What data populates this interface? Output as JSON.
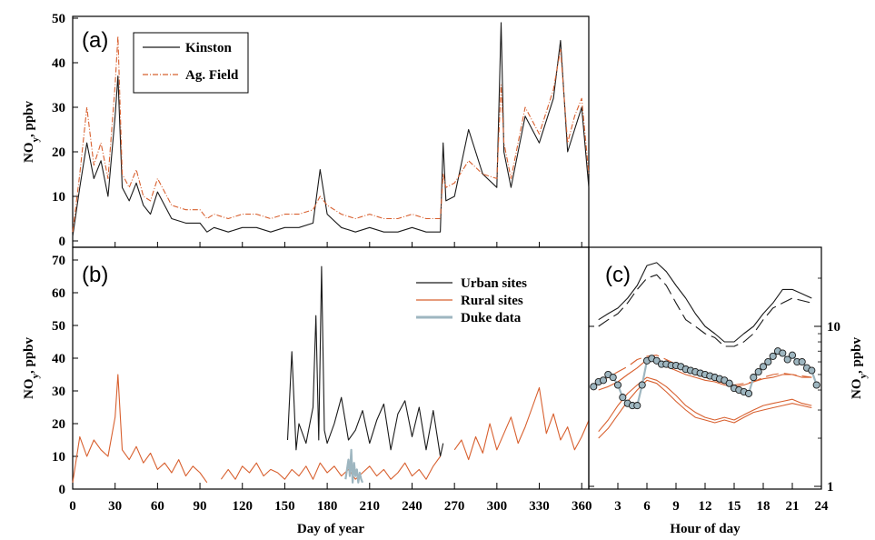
{
  "colors": {
    "urban": "#1a1a1a",
    "rural": "#d8602f",
    "duke": "#9eb6c0",
    "axes": "#000000"
  },
  "chart_data": [
    {
      "panel": "a",
      "type": "line",
      "panel_label": "(a)",
      "title": "",
      "xlabel": "",
      "ylabel_main": "NO",
      "ylabel_sub": "y",
      "ylabel_rest": ", ppbv",
      "xlim": [
        0,
        365
      ],
      "ylim": [
        0,
        50
      ],
      "x_ticks": [
        0,
        30,
        60,
        90,
        120,
        150,
        180,
        210,
        240,
        270,
        300,
        330,
        360
      ],
      "y_ticks": [
        "0",
        "10",
        "20",
        "30",
        "40",
        "50"
      ],
      "legend_position": "top-left",
      "series": [
        {
          "name": "Kinston",
          "style": "solid",
          "color_key": "urban",
          "x": [
            0,
            5,
            10,
            15,
            20,
            25,
            30,
            32,
            35,
            40,
            45,
            50,
            55,
            60,
            70,
            80,
            90,
            95,
            100,
            110,
            120,
            130,
            140,
            150,
            160,
            170,
            175,
            180,
            190,
            200,
            210,
            220,
            230,
            240,
            250,
            260,
            262,
            264,
            270,
            280,
            290,
            300,
            303,
            305,
            310,
            320,
            330,
            340,
            345,
            350,
            355,
            360,
            365
          ],
          "y": [
            1,
            12,
            22,
            14,
            18,
            10,
            28,
            37,
            12,
            9,
            13,
            8,
            6,
            11,
            5,
            4,
            4,
            2,
            3,
            2,
            3,
            3,
            2,
            3,
            3,
            4,
            16,
            6,
            3,
            2,
            3,
            2,
            2,
            3,
            2,
            2,
            22,
            9,
            10,
            25,
            15,
            12,
            49,
            20,
            12,
            28,
            22,
            32,
            45,
            20,
            25,
            30,
            12
          ]
        },
        {
          "name": "Ag. Field",
          "style": "dash-dot",
          "color_key": "rural",
          "x": [
            0,
            5,
            10,
            15,
            20,
            25,
            30,
            32,
            35,
            40,
            45,
            50,
            55,
            60,
            70,
            80,
            90,
            95,
            100,
            110,
            120,
            130,
            140,
            150,
            160,
            170,
            175,
            180,
            190,
            200,
            210,
            220,
            230,
            240,
            250,
            260,
            262,
            264,
            270,
            280,
            290,
            300,
            303,
            305,
            310,
            320,
            330,
            340,
            345,
            350,
            355,
            360,
            365
          ],
          "y": [
            2,
            15,
            30,
            17,
            22,
            14,
            35,
            46,
            15,
            12,
            16,
            10,
            9,
            14,
            8,
            7,
            7,
            5,
            6,
            5,
            6,
            6,
            5,
            6,
            6,
            7,
            10,
            8,
            6,
            5,
            6,
            5,
            5,
            6,
            5,
            5,
            15,
            12,
            13,
            18,
            15,
            14,
            35,
            22,
            14,
            30,
            24,
            34,
            43,
            22,
            28,
            32,
            15
          ]
        }
      ]
    },
    {
      "panel": "b",
      "type": "line",
      "panel_label": "(b)",
      "title": "",
      "xlabel": "Day of year",
      "ylabel_main": "NO",
      "ylabel_sub": "y",
      "ylabel_rest": ", ppbv",
      "xlim": [
        0,
        365
      ],
      "ylim": [
        0,
        70
      ],
      "x_ticks": [
        0,
        30,
        60,
        90,
        120,
        150,
        180,
        210,
        240,
        270,
        300,
        330,
        360
      ],
      "y_ticks": [
        "0",
        "10",
        "20",
        "30",
        "40",
        "50",
        "60",
        "70"
      ],
      "legend_position": "top-right",
      "series": [
        {
          "name": "Urban sites",
          "style": "solid",
          "color_key": "urban",
          "x": [
            152,
            155,
            158,
            160,
            165,
            170,
            172,
            174,
            176,
            178,
            180,
            185,
            190,
            195,
            200,
            205,
            210,
            215,
            220,
            225,
            230,
            235,
            240,
            245,
            250,
            255,
            260,
            262
          ],
          "y": [
            15,
            42,
            12,
            20,
            14,
            25,
            53,
            15,
            68,
            18,
            14,
            20,
            28,
            15,
            18,
            24,
            14,
            21,
            26,
            12,
            23,
            27,
            16,
            25,
            12,
            24,
            10,
            14
          ]
        },
        {
          "name": "Rural sites",
          "style": "solid",
          "color_key": "rural",
          "x": [
            0,
            5,
            10,
            15,
            20,
            25,
            30,
            32,
            35,
            40,
            45,
            50,
            55,
            60,
            65,
            70,
            75,
            80,
            85,
            90,
            95,
            100,
            105,
            110,
            115,
            120,
            125,
            130,
            135,
            140,
            145,
            150,
            155,
            160,
            165,
            170,
            175,
            180,
            185,
            190,
            195,
            200,
            205,
            210,
            215,
            220,
            225,
            230,
            235,
            240,
            245,
            250,
            255,
            260,
            265,
            270,
            275,
            280,
            285,
            290,
            295,
            300,
            305,
            310,
            315,
            320,
            325,
            330,
            335,
            340,
            345,
            350,
            355,
            360,
            365
          ],
          "y": [
            2,
            16,
            10,
            15,
            12,
            10,
            22,
            35,
            12,
            9,
            13,
            8,
            11,
            6,
            8,
            5,
            9,
            4,
            7,
            5,
            2,
            null,
            3,
            6,
            3,
            7,
            5,
            8,
            4,
            6,
            5,
            3,
            6,
            4,
            7,
            3,
            8,
            5,
            7,
            4,
            6,
            3,
            5,
            7,
            4,
            6,
            3,
            5,
            8,
            4,
            6,
            3,
            7,
            10,
            null,
            12,
            15,
            9,
            16,
            11,
            20,
            12,
            17,
            22,
            14,
            19,
            25,
            31,
            17,
            23,
            15,
            19,
            12,
            16,
            21
          ]
        },
        {
          "name": "Duke data",
          "style": "solid",
          "color_key": "duke",
          "x": [
            193,
            195,
            196,
            197,
            198,
            199,
            200,
            201,
            202,
            203,
            204,
            205
          ],
          "y": [
            3,
            9,
            4,
            12,
            2,
            8,
            4,
            6,
            2,
            5,
            3,
            2
          ]
        }
      ]
    },
    {
      "panel": "c",
      "type": "line",
      "panel_label": "(c)",
      "title": "",
      "xlabel": "Hour of day",
      "ylabel_main": "NO",
      "ylabel_sub": "y",
      "ylabel_rest": ", ppbv",
      "y_scale": "log",
      "xlim": [
        0,
        24
      ],
      "ylim": [
        1,
        30
      ],
      "x_ticks": [
        "3",
        "6",
        "9",
        "12",
        "15",
        "18",
        "21",
        "24"
      ],
      "y_ticks": [
        {
          "value": 1,
          "label": "1"
        },
        {
          "value": 10,
          "label": "10"
        }
      ],
      "series": [
        {
          "style": "solid",
          "color_key": "urban",
          "x": [
            1,
            2,
            3,
            4,
            5,
            6,
            7,
            8,
            9,
            10,
            11,
            12,
            13,
            14,
            15,
            16,
            17,
            18,
            19,
            20,
            21,
            22,
            23
          ],
          "y": [
            11,
            12,
            13,
            15,
            18,
            24,
            25,
            22,
            18,
            15,
            12,
            10,
            9,
            8,
            8,
            9,
            10,
            12,
            14,
            17,
            17,
            16,
            15
          ]
        },
        {
          "style": "long-dash",
          "color_key": "urban",
          "x": [
            1,
            2,
            3,
            4,
            5,
            6,
            7,
            8,
            9,
            10,
            11,
            12,
            13,
            14,
            15,
            16,
            17,
            18,
            19,
            20,
            21,
            22,
            23
          ],
          "y": [
            10,
            11,
            12,
            14,
            17,
            20,
            21,
            18,
            14,
            11,
            10,
            9,
            8.5,
            7.5,
            7.5,
            8,
            9,
            11,
            13,
            14,
            15,
            14.5,
            14
          ]
        },
        {
          "style": "long-dash",
          "color_key": "rural",
          "x": [
            1,
            2,
            3,
            4,
            5,
            6,
            7,
            8,
            9,
            10,
            11,
            12,
            13,
            14,
            15,
            16,
            17,
            18,
            19,
            20,
            21,
            22,
            23
          ],
          "y": [
            4.5,
            4.8,
            5.2,
            5.6,
            6.2,
            6.5,
            6.6,
            6.2,
            5.8,
            5.3,
            5,
            4.8,
            4.6,
            4.4,
            4.3,
            4.4,
            4.5,
            4.8,
            5,
            5.1,
            5,
            4.9,
            4.8
          ]
        },
        {
          "style": "solid",
          "color_key": "rural",
          "x": [
            1,
            2,
            3,
            4,
            5,
            6,
            7,
            8,
            9,
            10,
            11,
            12,
            13,
            14,
            15,
            16,
            17,
            18,
            19,
            20,
            21,
            22,
            23
          ],
          "y": [
            4,
            4.2,
            4.5,
            5,
            5.5,
            6.2,
            6,
            5.6,
            5.3,
            5,
            4.8,
            4.6,
            4.5,
            4.3,
            4.2,
            4.3,
            4.5,
            4.7,
            4.8,
            5,
            5,
            4.8,
            4.8
          ]
        },
        {
          "style": "solid",
          "color_key": "rural",
          "x": [
            1,
            2,
            3,
            4,
            5,
            6,
            7,
            8,
            9,
            10,
            11,
            12,
            13,
            14,
            15,
            16,
            17,
            18,
            19,
            20,
            21,
            22,
            23
          ],
          "y": [
            2.2,
            2.6,
            3.2,
            3.8,
            4.3,
            4.8,
            4.6,
            4.2,
            3.7,
            3.2,
            2.9,
            2.7,
            2.6,
            2.7,
            2.6,
            2.8,
            3.0,
            3.2,
            3.3,
            3.4,
            3.5,
            3.3,
            3.2
          ]
        },
        {
          "style": "solid",
          "color_key": "rural",
          "x": [
            1,
            2,
            3,
            4,
            5,
            6,
            7,
            8,
            9,
            10,
            11,
            12,
            13,
            14,
            15,
            16,
            17,
            18,
            19,
            20,
            21,
            22,
            23
          ],
          "y": [
            2.0,
            2.3,
            2.8,
            3.4,
            4.0,
            4.6,
            4.4,
            3.9,
            3.4,
            3.0,
            2.7,
            2.6,
            2.5,
            2.6,
            2.5,
            2.7,
            2.9,
            3.0,
            3.1,
            3.2,
            3.3,
            3.2,
            3.1
          ]
        },
        {
          "name": "Duke data",
          "style": "line-markers",
          "color_key": "duke",
          "x": [
            0.5,
            1,
            1.5,
            2,
            2.5,
            3,
            3.5,
            4,
            4.5,
            5,
            5.5,
            6,
            6.5,
            7,
            7.5,
            8,
            8.5,
            9,
            9.5,
            10,
            10.5,
            11,
            11.5,
            12,
            12.5,
            13,
            13.5,
            14,
            14.5,
            15,
            15.5,
            16,
            16.5,
            17,
            17.5,
            18,
            18.5,
            19,
            19.5,
            20,
            20.5,
            21,
            21.5,
            22,
            22.5,
            23,
            23.5
          ],
          "y": [
            4.2,
            4.5,
            4.6,
            5.0,
            4.8,
            4.3,
            3.6,
            3.3,
            3.2,
            3.2,
            4.3,
            6.1,
            6.3,
            6.1,
            5.8,
            5.8,
            5.7,
            5.7,
            5.6,
            5.4,
            5.3,
            5.2,
            5.1,
            5.0,
            4.9,
            4.8,
            4.7,
            4.6,
            4.4,
            4.1,
            4.0,
            3.9,
            3.8,
            4.8,
            5.2,
            5.6,
            6.0,
            6.5,
            7.0,
            6.8,
            6.2,
            6.6,
            6.0,
            6.0,
            5.5,
            5.3,
            4.3
          ]
        }
      ]
    }
  ]
}
